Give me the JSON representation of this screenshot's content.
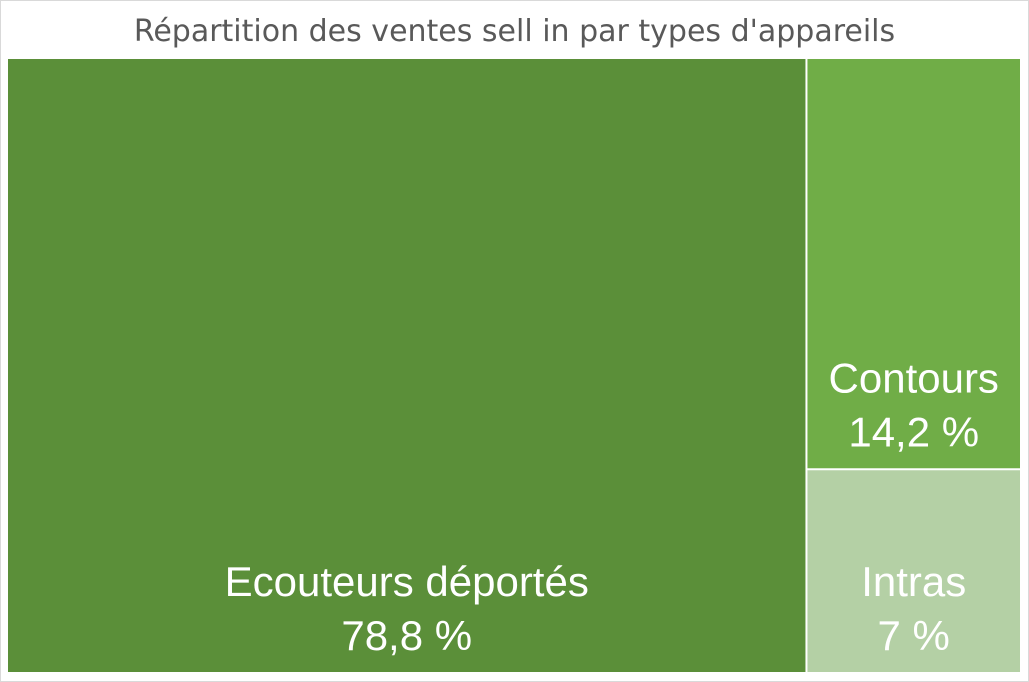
{
  "chart_data": {
    "type": "treemap",
    "title": "Répartition des ventes sell in par types d'appareils",
    "items": [
      {
        "name": "Ecouteurs déportés",
        "value": 78.8,
        "label": "78,8 %",
        "color": "#5b8f39"
      },
      {
        "name": "Contours",
        "value": 14.2,
        "label": "14,2 %",
        "color": "#70ad47"
      },
      {
        "name": "Intras",
        "value": 7.0,
        "label": "7 %",
        "color": "#b4d0a5"
      }
    ],
    "legend": "none"
  }
}
